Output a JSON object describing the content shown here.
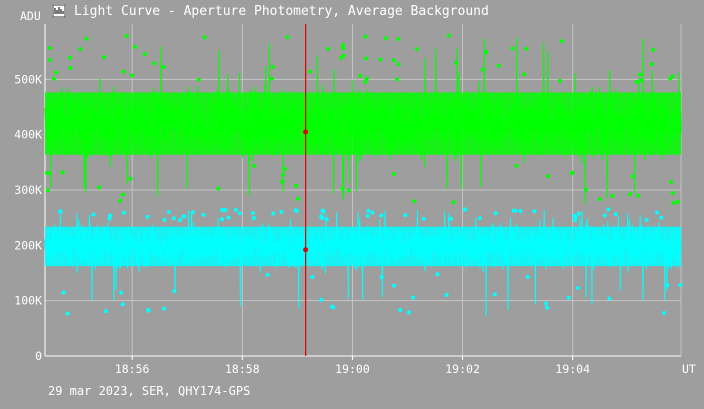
{
  "window": {
    "title": "Light Curve - Aperture Photometry, Average Background",
    "icon": "light-curve-app-icon",
    "footer": "29 mar 2023, SER, QHY174-GPS"
  },
  "chart_data": {
    "type": "scatter",
    "title": "Light Curve - Aperture Photometry, Average Background",
    "ylabel": "ADU",
    "xlabel": "UT",
    "x_range": [
      "18:54:25",
      "19:05:58"
    ],
    "ylim": [
      0,
      600000
    ],
    "y_ticks": [
      {
        "value": 0,
        "label": "0"
      },
      {
        "value": 100000,
        "label": "100K"
      },
      {
        "value": 200000,
        "label": "200K"
      },
      {
        "value": 300000,
        "label": "300K"
      },
      {
        "value": 400000,
        "label": "400K"
      },
      {
        "value": 500000,
        "label": "500K"
      }
    ],
    "x_ticks": [
      {
        "value": "18:56",
        "label": "18:56"
      },
      {
        "value": "18:58",
        "label": "18:58"
      },
      {
        "value": "19:00",
        "label": "19:00"
      },
      {
        "value": "19:02",
        "label": "19:02"
      },
      {
        "value": "19:04",
        "label": "19:04"
      }
    ],
    "grid": true,
    "series": [
      {
        "color": "#00ff00",
        "mean": 420000,
        "spread_low": 345000,
        "spread_high": 495000,
        "min": 275000,
        "max": 580000
      },
      {
        "color": "#00ffff",
        "mean": 198000,
        "spread_low": 150000,
        "spread_high": 245000,
        "min": 72000,
        "max": 265000
      }
    ],
    "cursor": {
      "x": "18:59:09",
      "color": "#e00000",
      "values": [
        405000,
        192000
      ]
    }
  },
  "colors": {
    "background": "#9e9e9e",
    "grid": "#c4c4c4",
    "text": "#ffffff",
    "cursor": "#e00000"
  }
}
